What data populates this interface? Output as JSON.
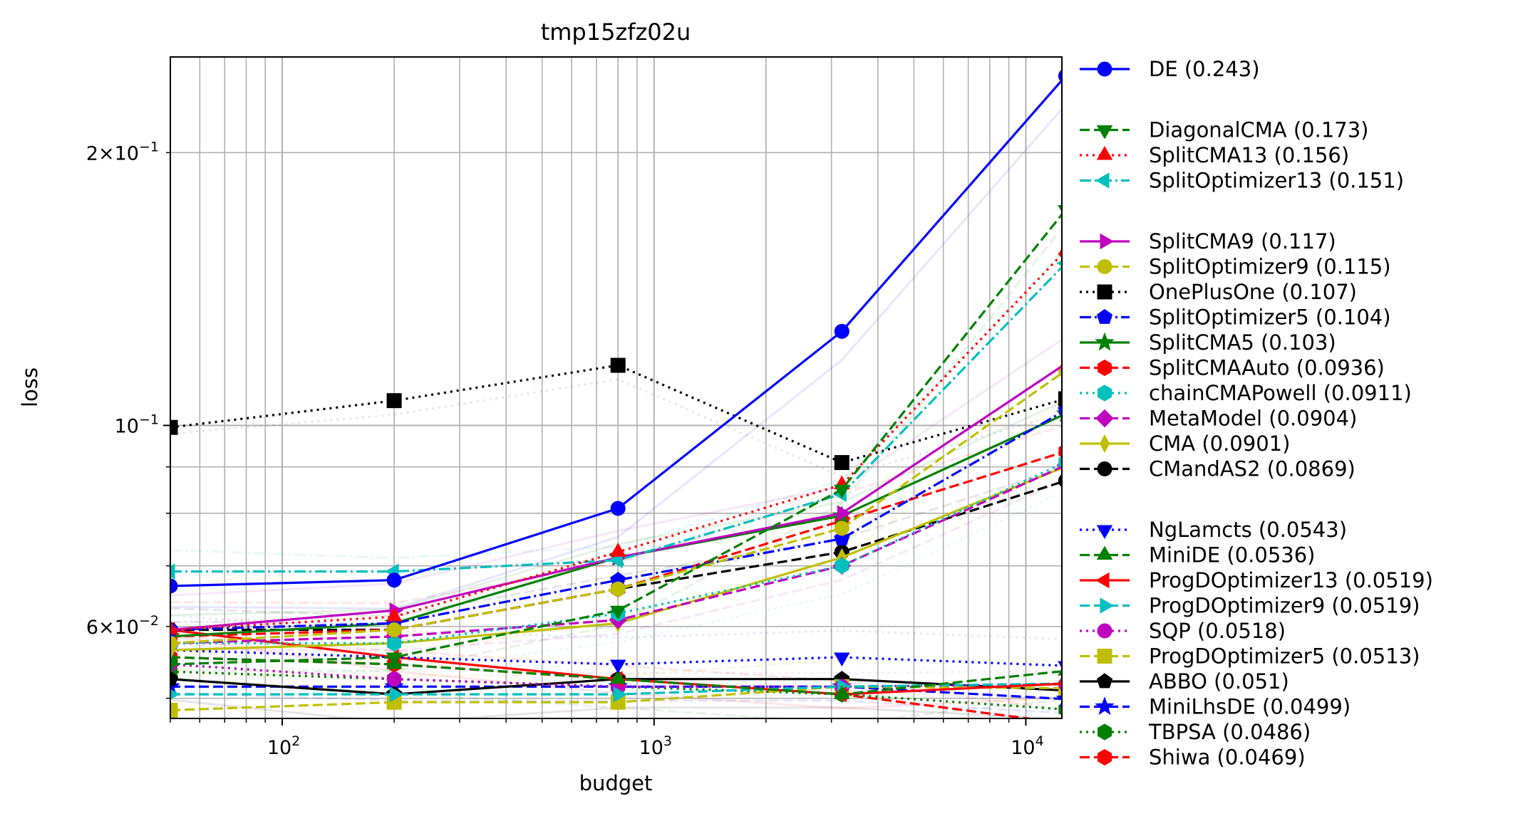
{
  "chart_data": {
    "type": "line",
    "title": "tmp15zfz02u",
    "xlabel": "budget",
    "ylabel": "loss",
    "xscale": "log",
    "yscale": "log",
    "xlim": [
      50,
      12500
    ],
    "ylim": [
      0.0475,
      0.255
    ],
    "grid": true,
    "legend_position": "right-outside",
    "x": [
      50,
      200,
      800,
      3200,
      12800
    ],
    "x_ticks": [
      {
        "value": 100,
        "base": "10",
        "exp": "2"
      },
      {
        "value": 1000,
        "base": "10",
        "exp": "3"
      },
      {
        "value": 10000,
        "base": "10",
        "exp": "4"
      }
    ],
    "y_ticks": [
      {
        "value": 0.2,
        "mant": "2×",
        "base": "10",
        "exp": "−1"
      },
      {
        "value": 0.1,
        "mant": "",
        "base": "10",
        "exp": "−1"
      },
      {
        "value": 0.06,
        "mant": "6×",
        "base": "10",
        "exp": "−2"
      }
    ],
    "series": [
      {
        "name": "DE (0.243)",
        "color": "#0000ff",
        "dash": "solid",
        "marker": "circle",
        "values": [
          0.0665,
          0.0675,
          0.081,
          0.127,
          0.243
        ]
      },
      {
        "name": "DiagonalCMA (0.173)",
        "color": "#008000",
        "dash": "dashed",
        "marker": "triangle-down",
        "values": [
          0.0545,
          0.0555,
          0.0625,
          0.085,
          0.173
        ]
      },
      {
        "name": "SplitCMA13 (0.156)",
        "color": "#ff0000",
        "dash": "dotted",
        "marker": "triangle-up",
        "values": [
          0.0595,
          0.0615,
          0.0725,
          0.086,
          0.156
        ]
      },
      {
        "name": "SplitOptimizer13 (0.151)",
        "color": "#00bfbf",
        "dash": "dashdot",
        "marker": "triangle-left",
        "values": [
          0.069,
          0.069,
          0.071,
          0.084,
          0.151
        ]
      },
      {
        "name": "SplitCMA9 (0.117)",
        "color": "#bf00bf",
        "dash": "solid",
        "marker": "triangle-right",
        "values": [
          0.0595,
          0.0625,
          0.0715,
          0.08,
          0.117
        ]
      },
      {
        "name": "SplitOptimizer9 (0.115)",
        "color": "#bfbf00",
        "dash": "dashed",
        "marker": "circle",
        "values": [
          0.0575,
          0.0595,
          0.066,
          0.077,
          0.115
        ]
      },
      {
        "name": "OnePlusOne (0.107)",
        "color": "#000000",
        "dash": "dotted",
        "marker": "square",
        "values": [
          0.0995,
          0.1065,
          0.1165,
          0.091,
          0.107
        ]
      },
      {
        "name": "SplitOptimizer5 (0.104)",
        "color": "#0000ff",
        "dash": "dashdot",
        "marker": "pentagon",
        "values": [
          0.0595,
          0.0605,
          0.0675,
          0.075,
          0.104
        ]
      },
      {
        "name": "SplitCMA5 (0.103)",
        "color": "#008000",
        "dash": "solid",
        "marker": "star",
        "values": [
          0.0585,
          0.0605,
          0.0715,
          0.0795,
          0.103
        ]
      },
      {
        "name": "SplitCMAAuto (0.0936)",
        "color": "#ff0000",
        "dash": "dashed",
        "marker": "hexagon",
        "values": [
          0.0585,
          0.0595,
          0.066,
          0.0785,
          0.0936
        ]
      },
      {
        "name": "chainCMAPowell (0.0911)",
        "color": "#00bfbf",
        "dash": "dotted",
        "marker": "hexagon",
        "values": [
          0.0575,
          0.0575,
          0.062,
          0.07,
          0.0911
        ]
      },
      {
        "name": "MetaModel (0.0904)",
        "color": "#bf00bf",
        "dash": "dashed",
        "marker": "diamond",
        "values": [
          0.0575,
          0.0585,
          0.061,
          0.07,
          0.0904
        ]
      },
      {
        "name": "CMA (0.0901)",
        "color": "#bfbf00",
        "dash": "solid",
        "marker": "thin-diamond",
        "values": [
          0.0565,
          0.0575,
          0.0605,
          0.0715,
          0.0901
        ]
      },
      {
        "name": "CMandAS2 (0.0869)",
        "color": "#000000",
        "dash": "dashed",
        "marker": "circle",
        "values": [
          0.0595,
          0.0595,
          0.066,
          0.0725,
          0.0869
        ]
      },
      {
        "name": "NgLamcts (0.0543)",
        "color": "#0000ff",
        "dash": "dotted",
        "marker": "triangle-down",
        "values": [
          0.0565,
          0.0555,
          0.0545,
          0.0555,
          0.0543
        ]
      },
      {
        "name": "MiniDE (0.0536)",
        "color": "#008000",
        "dash": "dashed",
        "marker": "triangle-up",
        "values": [
          0.0555,
          0.0545,
          0.0525,
          0.0505,
          0.0536
        ]
      },
      {
        "name": "ProgDOptimizer13 (0.0519)",
        "color": "#ff0000",
        "dash": "solid",
        "marker": "triangle-left",
        "values": [
          0.0595,
          0.0555,
          0.0525,
          0.0505,
          0.0519
        ]
      },
      {
        "name": "ProgDOptimizer9 (0.0519)",
        "color": "#00bfbf",
        "dash": "dashed",
        "marker": "triangle-right",
        "values": [
          0.0505,
          0.0505,
          0.0505,
          0.0515,
          0.0519
        ]
      },
      {
        "name": "SQP (0.0518)",
        "color": "#bf00bf",
        "dash": "dotted",
        "marker": "circle",
        "values": [
          0.0545,
          0.0525,
          0.0515,
          0.0515,
          0.0518
        ]
      },
      {
        "name": "ProgDOptimizer5 (0.0513)",
        "color": "#bfbf00",
        "dash": "dashed",
        "marker": "square",
        "values": [
          0.0485,
          0.0495,
          0.0495,
          0.0515,
          0.0513
        ]
      },
      {
        "name": "ABBO (0.051)",
        "color": "#000000",
        "dash": "solid",
        "marker": "pentagon",
        "values": [
          0.0525,
          0.0505,
          0.0525,
          0.0525,
          0.051
        ]
      },
      {
        "name": "MiniLhsDE (0.0499)",
        "color": "#0000ff",
        "dash": "dashed",
        "marker": "star",
        "values": [
          0.0515,
          0.0515,
          0.0515,
          0.0515,
          0.0499
        ]
      },
      {
        "name": "TBPSA (0.0486)",
        "color": "#008000",
        "dash": "dotted",
        "marker": "hexagon",
        "values": [
          0.0535,
          0.0525,
          0.0515,
          0.0505,
          0.0486
        ]
      },
      {
        "name": "Shiwa (0.0469)",
        "color": "#ff0000",
        "dash": "dashed",
        "marker": "hexagon",
        "values": [
          0.0555,
          0.0545,
          0.0525,
          0.0505,
          0.0469
        ]
      }
    ],
    "legend_groups": [
      [
        0
      ],
      [
        1,
        2,
        3
      ],
      [
        4,
        5,
        6,
        7,
        8,
        9,
        10,
        11,
        12,
        13
      ],
      [
        14,
        15,
        16,
        17,
        18,
        19,
        20,
        21,
        22,
        23
      ]
    ]
  }
}
